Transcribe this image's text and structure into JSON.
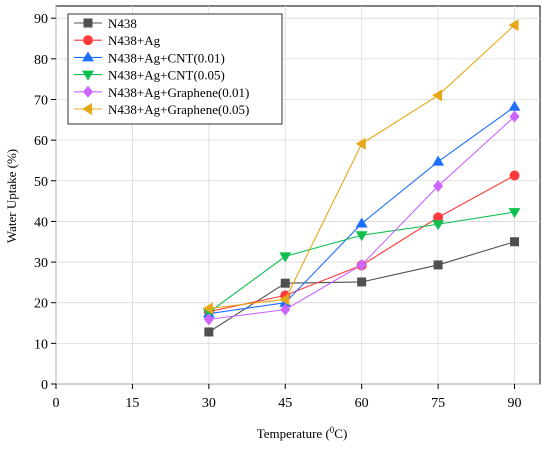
{
  "chart_data": {
    "type": "line",
    "xlabel": "Temperature (",
    "xlabel_sup": "0",
    "xlabel_unit": "C)",
    "ylabel": "Water Uptake (%)",
    "xlim": [
      0,
      95
    ],
    "ylim": [
      0,
      93
    ],
    "x_ticks": [
      0,
      15,
      30,
      45,
      60,
      75,
      90
    ],
    "y_ticks": [
      0,
      10,
      20,
      30,
      40,
      50,
      60,
      70,
      80,
      90
    ],
    "legend_position": "top-left",
    "x": [
      30,
      45,
      60,
      75,
      90
    ],
    "series": [
      {
        "name": "N438",
        "marker": "square",
        "color": "#505050",
        "values": [
          12.8,
          24.8,
          25.1,
          29.3,
          35.0
        ]
      },
      {
        "name": "N438+Ag",
        "marker": "circle",
        "color": "#ff3b3b",
        "values": [
          17.8,
          21.8,
          29.2,
          41.0,
          51.3
        ]
      },
      {
        "name": "N438+Ag+CNT(0.01)",
        "marker": "triangle-up",
        "color": "#1f6fff",
        "values": [
          17.3,
          20.0,
          39.5,
          54.7,
          68.2
        ]
      },
      {
        "name": "N438+Ag+CNT(0.05)",
        "marker": "triangle-down",
        "color": "#0fbf4f",
        "values": [
          17.6,
          31.4,
          36.6,
          39.3,
          42.3
        ]
      },
      {
        "name": "N438+Ag+Graphene(0.01)",
        "marker": "diamond",
        "color": "#cc66ff",
        "values": [
          15.9,
          18.3,
          29.3,
          48.7,
          65.8
        ]
      },
      {
        "name": "N438+Ag+Graphene(0.05)",
        "marker": "triangle-left",
        "color": "#e6a817",
        "values": [
          18.6,
          20.8,
          59.1,
          71.0,
          88.3
        ]
      }
    ]
  }
}
